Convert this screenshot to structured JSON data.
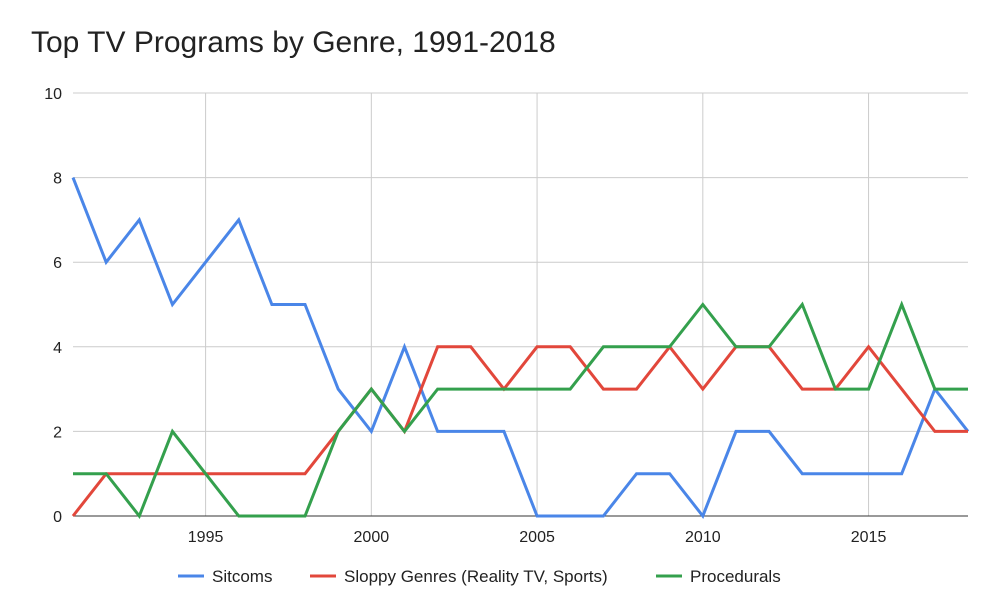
{
  "chart_data": {
    "type": "line",
    "title": "Top TV Programs by Genre, 1991-2018",
    "xlabel": "",
    "ylabel": "",
    "xlim": [
      1991,
      2018
    ],
    "ylim": [
      0,
      10
    ],
    "x_ticks": [
      1995,
      2000,
      2005,
      2010,
      2015
    ],
    "y_ticks": [
      0,
      2,
      4,
      6,
      8,
      10
    ],
    "grid": true,
    "legend_position": "bottom",
    "x": [
      1991,
      1992,
      1993,
      1994,
      1995,
      1996,
      1997,
      1998,
      1999,
      2000,
      2001,
      2002,
      2003,
      2004,
      2005,
      2006,
      2007,
      2008,
      2009,
      2010,
      2011,
      2012,
      2013,
      2014,
      2015,
      2016,
      2017,
      2018
    ],
    "series": [
      {
        "name": "Sitcoms",
        "color": "#4a86e8",
        "values": [
          8,
          6,
          7,
          5,
          6,
          7,
          5,
          5,
          3,
          2,
          4,
          2,
          2,
          2,
          0,
          0,
          0,
          1,
          1,
          0,
          2,
          2,
          1,
          1,
          1,
          1,
          3,
          2
        ]
      },
      {
        "name": "Sloppy Genres (Reality TV, Sports)",
        "color": "#e2473b",
        "values": [
          0,
          1,
          1,
          1,
          1,
          1,
          1,
          1,
          2,
          3,
          2,
          4,
          4,
          3,
          4,
          4,
          3,
          3,
          4,
          3,
          4,
          4,
          3,
          3,
          4,
          3,
          2,
          2
        ]
      },
      {
        "name": "Procedurals",
        "color": "#34a04d",
        "values": [
          1,
          1,
          0,
          2,
          1,
          0,
          0,
          0,
          2,
          3,
          2,
          3,
          3,
          3,
          3,
          3,
          4,
          4,
          4,
          5,
          4,
          4,
          5,
          3,
          3,
          5,
          3,
          3
        ]
      }
    ]
  }
}
